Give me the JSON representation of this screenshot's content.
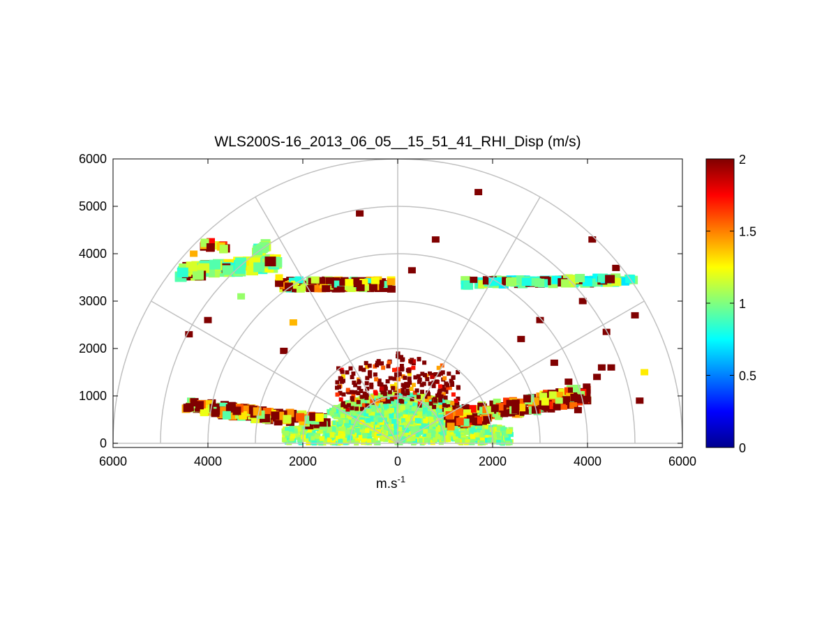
{
  "chart_data": {
    "type": "heatmap",
    "subtype": "polar-rhi-scan",
    "title": "WLS200S-16_2013_06_05__15_51_41_RHI_Disp (m/s)",
    "xlabel_base": "m.s",
    "xlabel_sup": "-1",
    "ylabel": "",
    "xlim": [
      -6000,
      6000
    ],
    "ylim": [
      -100,
      6000
    ],
    "x_ticks": [
      -6000,
      -4000,
      -2000,
      0,
      2000,
      4000,
      6000
    ],
    "x_tick_labels": [
      "6000",
      "4000",
      "2000",
      "0",
      "2000",
      "4000",
      "6000"
    ],
    "y_ticks": [
      0,
      1000,
      2000,
      3000,
      4000,
      5000,
      6000
    ],
    "y_tick_labels": [
      "0",
      "1000",
      "2000",
      "3000",
      "4000",
      "5000",
      "6000"
    ],
    "grid_rings": [
      1000,
      2000,
      3000,
      4000,
      5000,
      6000
    ],
    "grid_spokes_deg": [
      0,
      30,
      60,
      90,
      120,
      150,
      180
    ],
    "colorbar": {
      "colormap": "jet",
      "min": 0,
      "max": 2,
      "ticks": [
        0,
        0.5,
        1,
        1.5,
        2
      ],
      "tick_labels": [
        "0",
        "0.5",
        "1",
        "1.5",
        "2"
      ]
    },
    "features": [
      {
        "name": "near-surface dense field",
        "range_m": [
          0,
          2500
        ],
        "elevation_deg": [
          0,
          55
        ],
        "mean_value": 1.0
      },
      {
        "name": "low-level left band",
        "x_m": [
          -4500,
          -1500
        ],
        "y_m": [
          400,
          900
        ],
        "mean_value": 1.3
      },
      {
        "name": "low-level right band",
        "x_m": [
          1000,
          4000
        ],
        "y_m": [
          300,
          1200
        ],
        "mean_value": 1.5
      },
      {
        "name": "aerosol layer left",
        "x_m": [
          -4600,
          -100
        ],
        "y_m": [
          3000,
          3700
        ],
        "mean_value": 1.0
      },
      {
        "name": "aerosol layer right",
        "x_m": [
          1400,
          5000
        ],
        "y_m": [
          3250,
          3550
        ],
        "mean_value": 0.9
      },
      {
        "name": "upper patch left",
        "x_m": [
          -4100,
          -2700
        ],
        "y_m": [
          3900,
          4300
        ],
        "mean_value": 1.0
      }
    ]
  }
}
